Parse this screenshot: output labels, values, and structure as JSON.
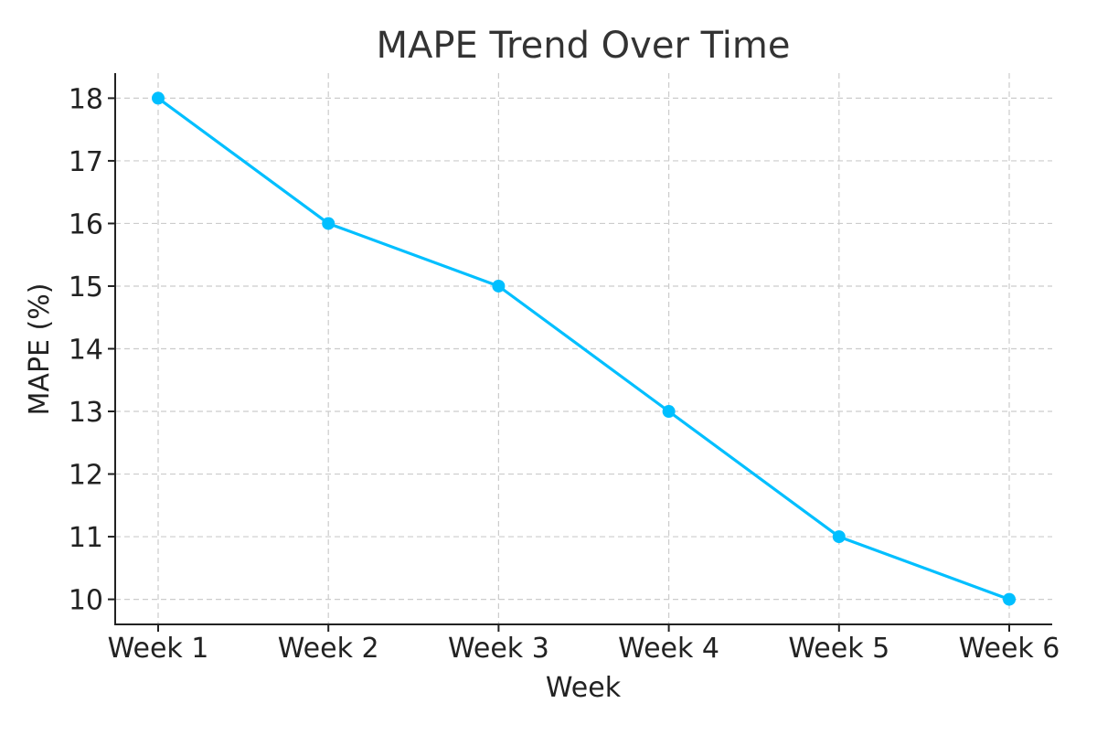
{
  "chart_data": {
    "type": "line",
    "title": "MAPE Trend Over Time",
    "xlabel": "Week",
    "ylabel": "MAPE (%)",
    "categories": [
      "Week 1",
      "Week 2",
      "Week 3",
      "Week 4",
      "Week 5",
      "Week 6"
    ],
    "series": [
      {
        "values": [
          18,
          16,
          15,
          13,
          11,
          10
        ],
        "color": "#00bfff",
        "marker": "circle"
      }
    ],
    "ylim": [
      9.6,
      18.4
    ],
    "yticks": [
      10,
      11,
      12,
      13,
      14,
      15,
      16,
      17,
      18
    ],
    "grid": true,
    "grid_style": "dashed"
  }
}
